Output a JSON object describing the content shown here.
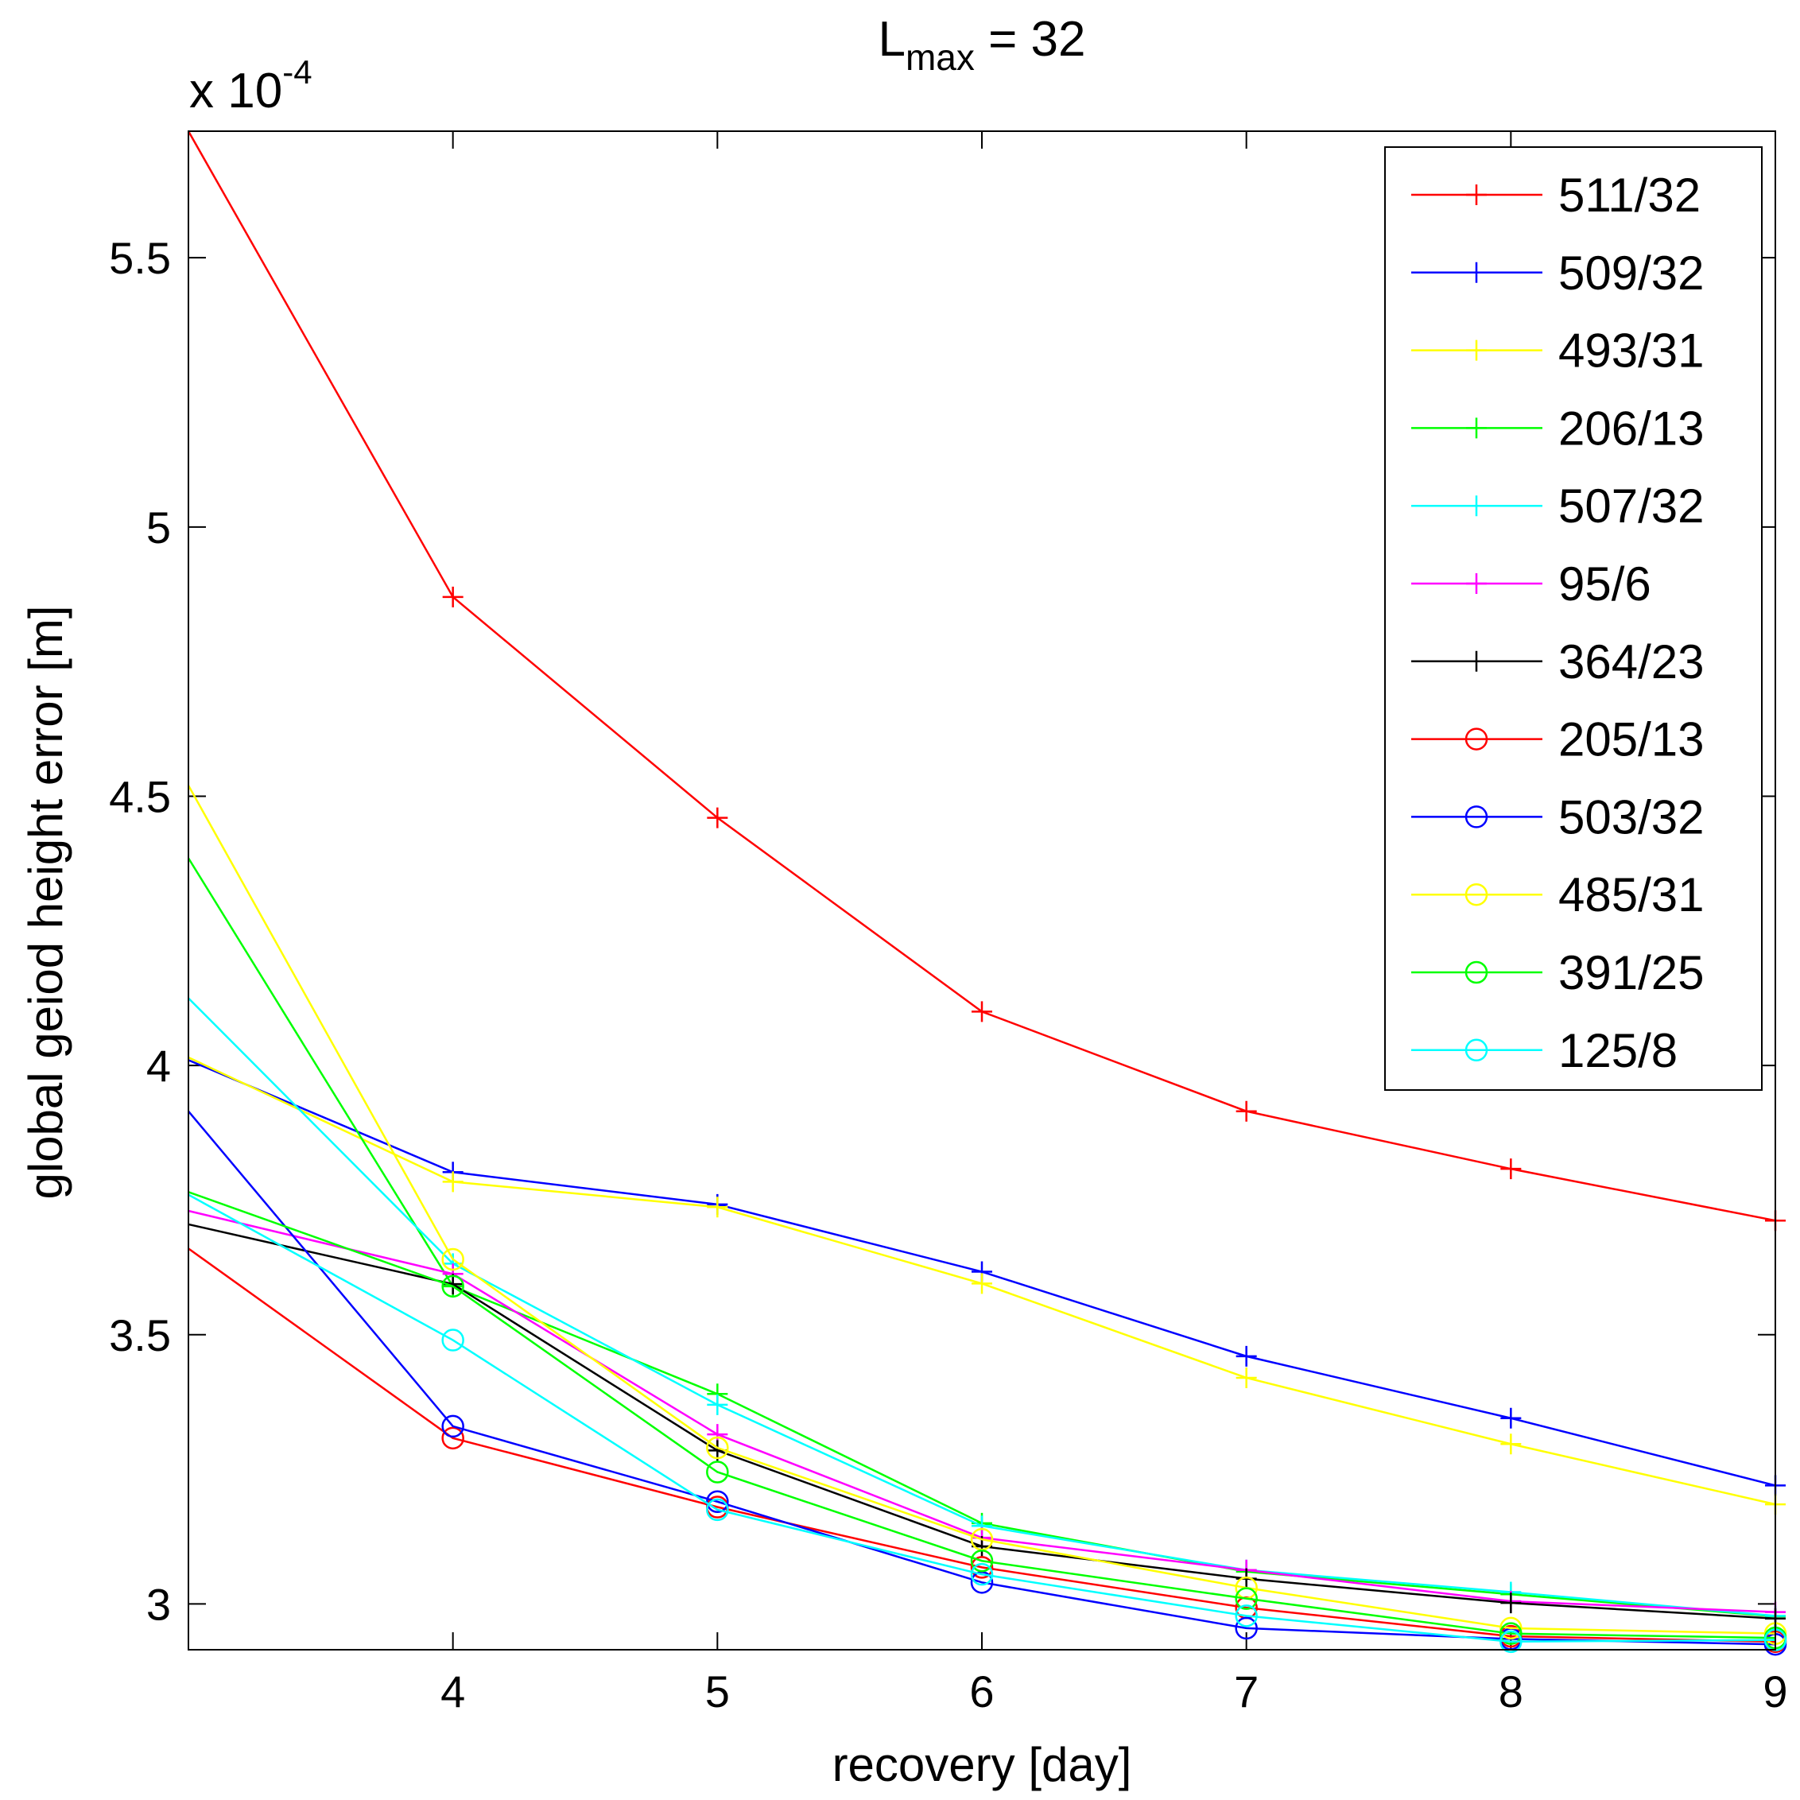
{
  "chart_data": {
    "type": "line",
    "title_main": "L",
    "title_sub": "max",
    "title_rest": " = 32",
    "xlabel": "recovery [day]",
    "ylabel": "global geiod height error [m]",
    "y_exponent_prefix": "x 10",
    "y_exponent": "-4",
    "xlim": [
      3,
      9
    ],
    "ylim": [
      2.915,
      5.735
    ],
    "xticks": [
      4,
      5,
      6,
      7,
      8,
      9
    ],
    "xtick_labels": [
      "4",
      "5",
      "6",
      "7",
      "8",
      "9"
    ],
    "yticks": [
      3.0,
      3.5,
      4.0,
      4.5,
      5.0,
      5.5
    ],
    "ytick_labels": [
      "3",
      "3.5",
      "4",
      "4.5",
      "5",
      "5.5"
    ],
    "legend_position": "top-right",
    "x": [
      3,
      4,
      5,
      6,
      7,
      8,
      9
    ],
    "series": [
      {
        "name": "511/32",
        "color": "#ff0000",
        "marker": "plus",
        "values": [
          5.735,
          4.87,
          4.46,
          4.1,
          3.915,
          3.808,
          3.712
        ]
      },
      {
        "name": "509/32",
        "color": "#0000ff",
        "marker": "plus",
        "values": [
          4.01,
          3.802,
          3.742,
          3.617,
          3.46,
          3.345,
          3.22
        ]
      },
      {
        "name": "493/31",
        "color": "#ffff00",
        "marker": "plus",
        "values": [
          4.015,
          3.784,
          3.737,
          3.595,
          3.42,
          3.297,
          3.185
        ]
      },
      {
        "name": "206/13",
        "color": "#00ff00",
        "marker": "plus",
        "values": [
          4.385,
          3.59,
          3.39,
          3.15,
          3.06,
          3.018,
          2.977
        ]
      },
      {
        "name": "507/32",
        "color": "#00ffff",
        "marker": "plus",
        "values": [
          4.125,
          3.632,
          3.37,
          3.145,
          3.063,
          3.022,
          2.978
        ]
      },
      {
        "name": "95/6",
        "color": "#ff00ff",
        "marker": "plus",
        "values": [
          3.73,
          3.613,
          3.315,
          3.123,
          3.063,
          3.005,
          2.985
        ]
      },
      {
        "name": "364/23",
        "color": "#000000",
        "marker": "plus",
        "values": [
          3.705,
          3.594,
          3.285,
          3.107,
          3.047,
          3.002,
          2.973
        ]
      },
      {
        "name": "205/13",
        "color": "#ff0000",
        "marker": "circle",
        "values": [
          3.66,
          3.308,
          3.18,
          3.068,
          2.993,
          2.94,
          2.93
        ]
      },
      {
        "name": "503/32",
        "color": "#0000ff",
        "marker": "circle",
        "values": [
          3.915,
          3.33,
          3.19,
          3.04,
          2.955,
          2.935,
          2.925
        ]
      },
      {
        "name": "485/31",
        "color": "#ffff00",
        "marker": "circle",
        "values": [
          4.52,
          3.64,
          3.29,
          3.12,
          3.03,
          2.955,
          2.945
        ]
      },
      {
        "name": "391/25",
        "color": "#00ff00",
        "marker": "circle",
        "values": [
          3.765,
          3.59,
          3.245,
          3.08,
          3.01,
          2.945,
          2.937
        ]
      },
      {
        "name": "125/8",
        "color": "#00ffff",
        "marker": "circle",
        "values": [
          3.76,
          3.49,
          3.175,
          3.055,
          2.978,
          2.93,
          2.933
        ]
      }
    ]
  }
}
